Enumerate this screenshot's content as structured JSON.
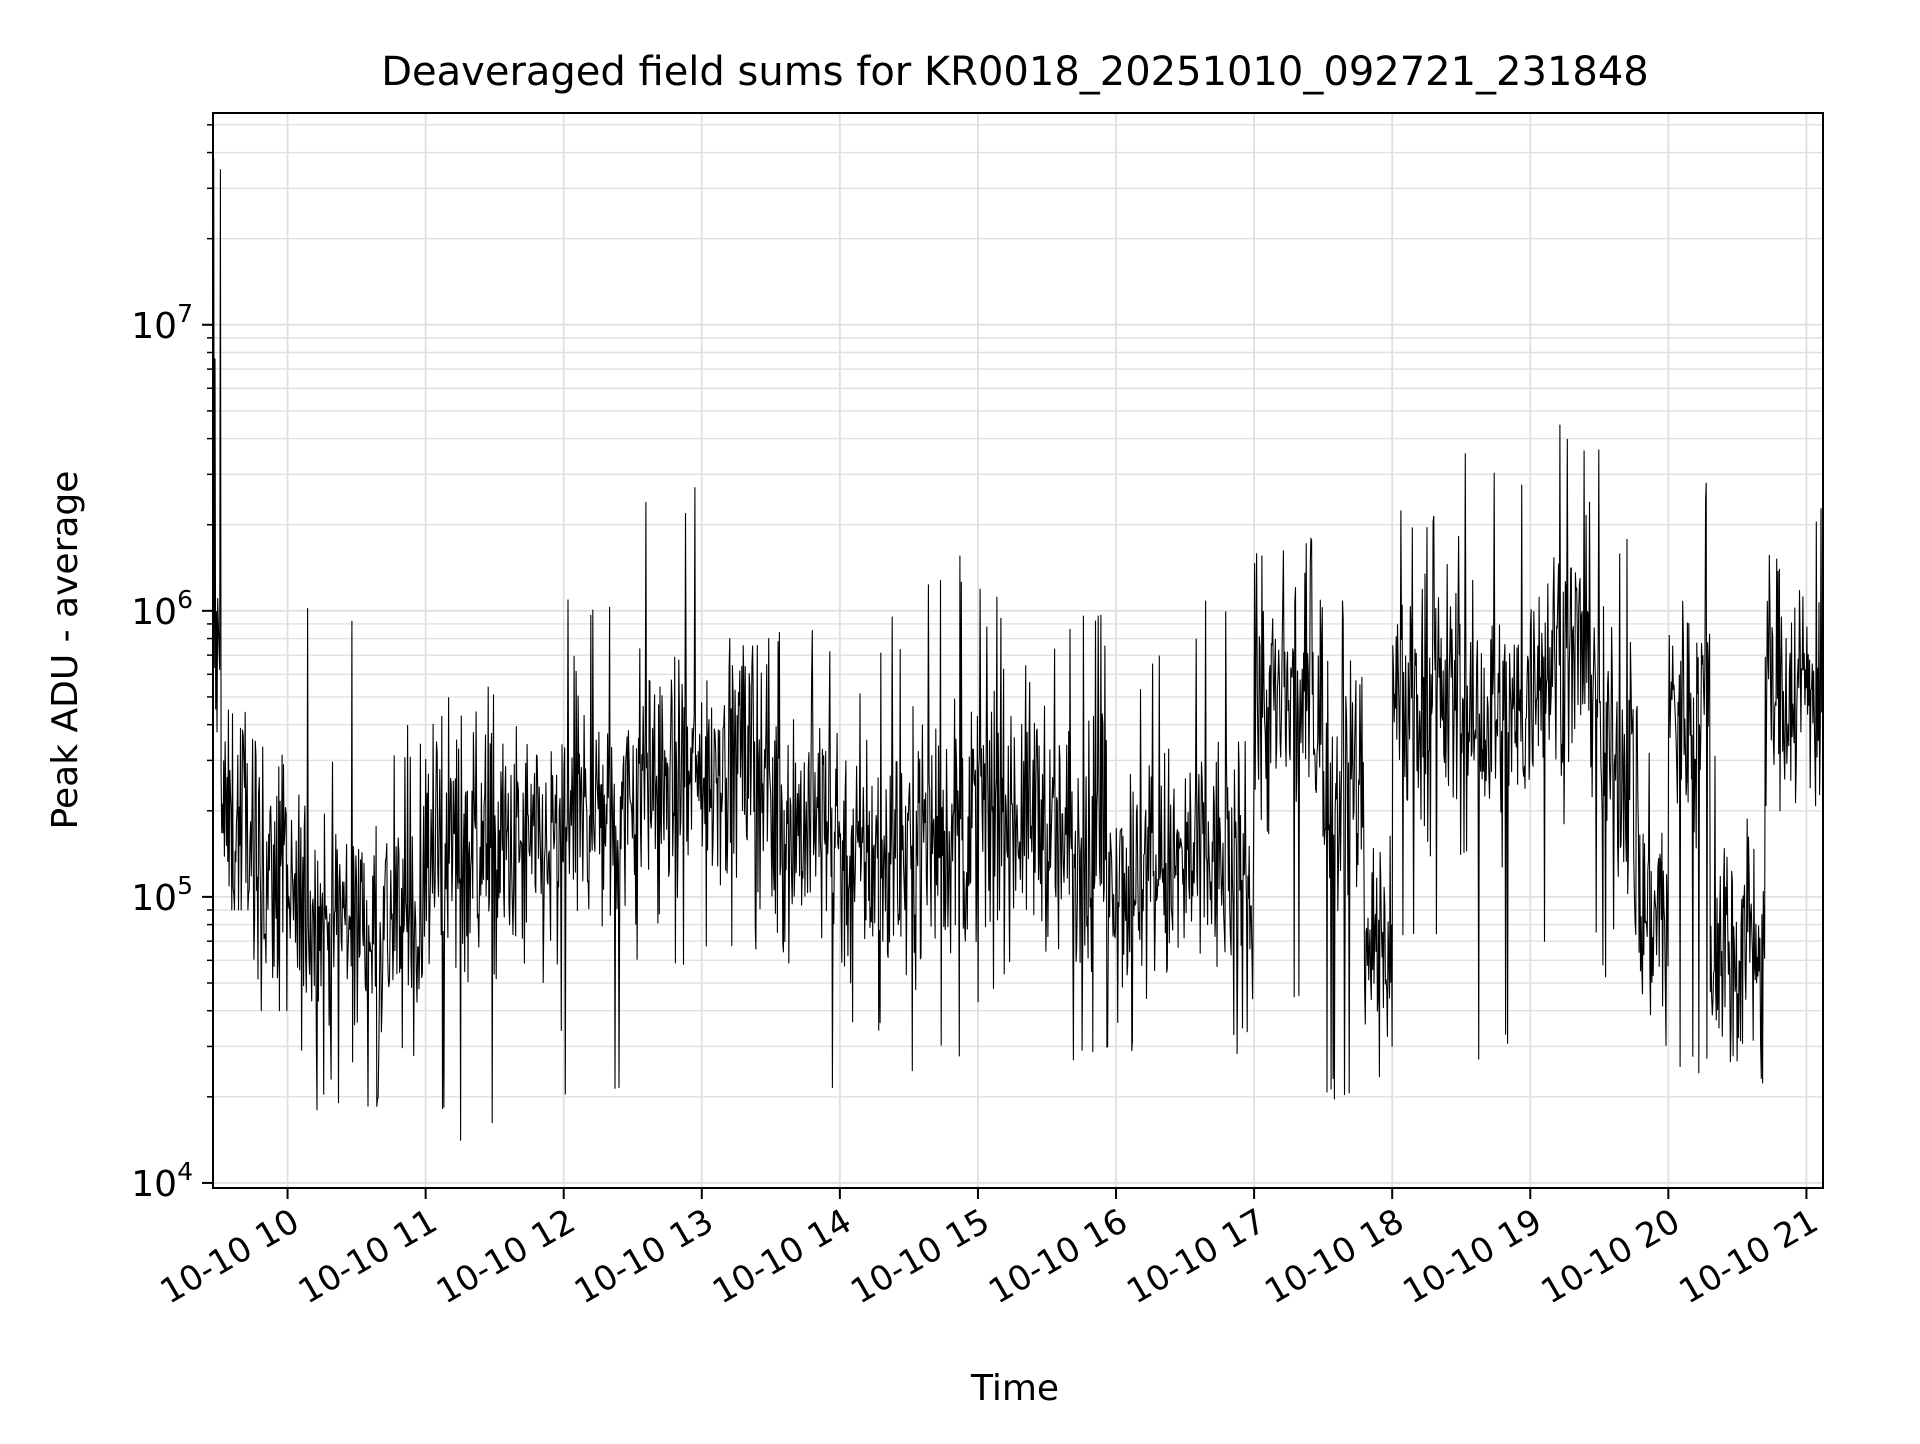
{
  "chart_data": {
    "type": "line",
    "title": "Deaveraged field sums for KR0018_20251010_092721_231848",
    "xlabel": "Time",
    "ylabel": "Peak ADU - average",
    "yscale": "log",
    "ylim": [
      9600,
      55000000
    ],
    "xlim_hours": [
      9.46,
      21.12
    ],
    "grid": true,
    "legend": "none",
    "line_color": "#000000",
    "grid_color": "#e0e0e0",
    "x_ticks": [
      {
        "hour": 10,
        "label": "10-10 10"
      },
      {
        "hour": 11,
        "label": "10-10 11"
      },
      {
        "hour": 12,
        "label": "10-10 12"
      },
      {
        "hour": 13,
        "label": "10-10 13"
      },
      {
        "hour": 14,
        "label": "10-10 14"
      },
      {
        "hour": 15,
        "label": "10-10 15"
      },
      {
        "hour": 16,
        "label": "10-10 16"
      },
      {
        "hour": 17,
        "label": "10-10 17"
      },
      {
        "hour": 18,
        "label": "10-10 18"
      },
      {
        "hour": 19,
        "label": "10-10 19"
      },
      {
        "hour": 20,
        "label": "10-10 20"
      },
      {
        "hour": 21,
        "label": "10-10 21"
      }
    ],
    "y_ticks": [
      {
        "value": 10000,
        "base": "10",
        "exp": "4"
      },
      {
        "value": 100000,
        "base": "10",
        "exp": "5"
      },
      {
        "value": 1000000,
        "base": "10",
        "exp": "6"
      },
      {
        "value": 10000000,
        "base": "10",
        "exp": "7"
      }
    ],
    "series": [
      {
        "name": "Peak ADU - average",
        "sampling": "approximate envelope read from plot; per-segment median level with spike excursions",
        "segments": [
          {
            "t": [
              9.46,
              9.52
            ],
            "median": 600000,
            "low": 200000,
            "high": 38000000
          },
          {
            "t": [
              9.52,
              9.75
            ],
            "median": 180000,
            "low": 90000,
            "high": 450000
          },
          {
            "t": [
              9.75,
              10.0
            ],
            "median": 110000,
            "low": 40000,
            "high": 350000
          },
          {
            "t": [
              10.0,
              10.5
            ],
            "median": 85000,
            "low": 18000,
            "high": 1100000
          },
          {
            "t": [
              10.5,
              11.0
            ],
            "median": 80000,
            "low": 16000,
            "high": 400000
          },
          {
            "t": [
              11.0,
              11.5
            ],
            "median": 150000,
            "low": 14000,
            "high": 550000
          },
          {
            "t": [
              11.5,
              12.0
            ],
            "median": 140000,
            "low": 28000,
            "high": 1200000
          },
          {
            "t": [
              12.0,
              12.5
            ],
            "median": 200000,
            "low": 17000,
            "high": 1200000
          },
          {
            "t": [
              12.5,
              13.0
            ],
            "median": 250000,
            "low": 50000,
            "high": 3000000
          },
          {
            "t": [
              13.0,
              13.5
            ],
            "median": 300000,
            "low": 60000,
            "high": 800000
          },
          {
            "t": [
              13.5,
              14.0
            ],
            "median": 180000,
            "low": 19000,
            "high": 1000000
          },
          {
            "t": [
              14.0,
              14.5
            ],
            "median": 140000,
            "low": 30000,
            "high": 1000000
          },
          {
            "t": [
              14.5,
              15.0
            ],
            "median": 170000,
            "low": 23000,
            "high": 1700000
          },
          {
            "t": [
              15.0,
              15.5
            ],
            "median": 200000,
            "low": 40000,
            "high": 1300000
          },
          {
            "t": [
              15.5,
              16.0
            ],
            "median": 150000,
            "low": 26000,
            "high": 1000000
          },
          {
            "t": [
              16.0,
              16.5
            ],
            "median": 120000,
            "low": 25000,
            "high": 700000
          },
          {
            "t": [
              16.5,
              17.0
            ],
            "median": 130000,
            "low": 26000,
            "high": 1100000
          },
          {
            "t": [
              17.0,
              17.5
            ],
            "median": 450000,
            "low": 40000,
            "high": 1800000
          },
          {
            "t": [
              17.5,
              17.8
            ],
            "median": 250000,
            "low": 19000,
            "high": 1200000
          },
          {
            "t": [
              17.8,
              18.0
            ],
            "median": 70000,
            "low": 22000,
            "high": 200000
          },
          {
            "t": [
              18.0,
              18.5
            ],
            "median": 500000,
            "low": 70000,
            "high": 2500000
          },
          {
            "t": [
              18.5,
              19.0
            ],
            "median": 400000,
            "low": 26000,
            "high": 3800000
          },
          {
            "t": [
              19.0,
              19.5
            ],
            "median": 700000,
            "low": 60000,
            "high": 4800000
          },
          {
            "t": [
              19.5,
              19.75
            ],
            "median": 300000,
            "low": 50000,
            "high": 2000000
          },
          {
            "t": [
              19.75,
              20.0
            ],
            "median": 90000,
            "low": 25000,
            "high": 500000
          },
          {
            "t": [
              20.0,
              20.3
            ],
            "median": 450000,
            "low": 22000,
            "high": 3000000
          },
          {
            "t": [
              20.3,
              20.7
            ],
            "median": 70000,
            "low": 22000,
            "high": 400000
          },
          {
            "t": [
              20.7,
              21.12
            ],
            "median": 550000,
            "low": 200000,
            "high": 2800000
          }
        ]
      }
    ]
  }
}
